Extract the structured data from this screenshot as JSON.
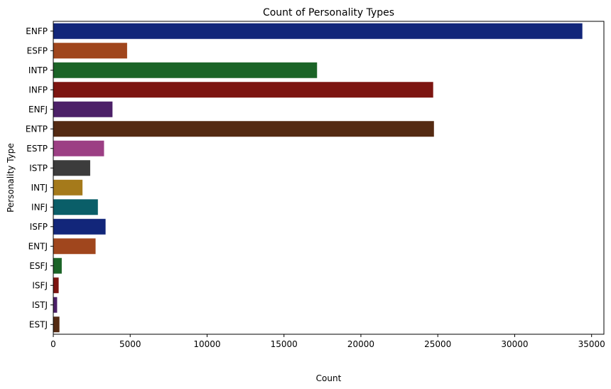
{
  "chart_data": {
    "type": "bar",
    "orientation": "horizontal",
    "title": "Count of Personality Types",
    "xlabel": "Count",
    "ylabel": "Personality Type",
    "xlim": [
      0,
      35800
    ],
    "xticks": [
      0,
      5000,
      10000,
      15000,
      20000,
      25000,
      30000,
      35000
    ],
    "grid": false,
    "categories": [
      "ENFP",
      "ESFP",
      "INTP",
      "INFP",
      "ENFJ",
      "ENTP",
      "ESTP",
      "ISTP",
      "INTJ",
      "INFJ",
      "ISFP",
      "ENTJ",
      "ESFJ",
      "ISFJ",
      "ISTJ",
      "ESTJ"
    ],
    "values": [
      34400,
      4800,
      17150,
      24700,
      3850,
      24750,
      3300,
      2400,
      1900,
      2900,
      3400,
      2750,
      550,
      350,
      250,
      400
    ],
    "colors": [
      "#12267a",
      "#a0461d",
      "#1b6427",
      "#7d1511",
      "#4c2068",
      "#542a12",
      "#9c3f84",
      "#3c3c3c",
      "#a57a1b",
      "#0a5e68",
      "#12267a",
      "#a0461d",
      "#1b6427",
      "#7d1511",
      "#4c2068",
      "#542a12"
    ]
  }
}
